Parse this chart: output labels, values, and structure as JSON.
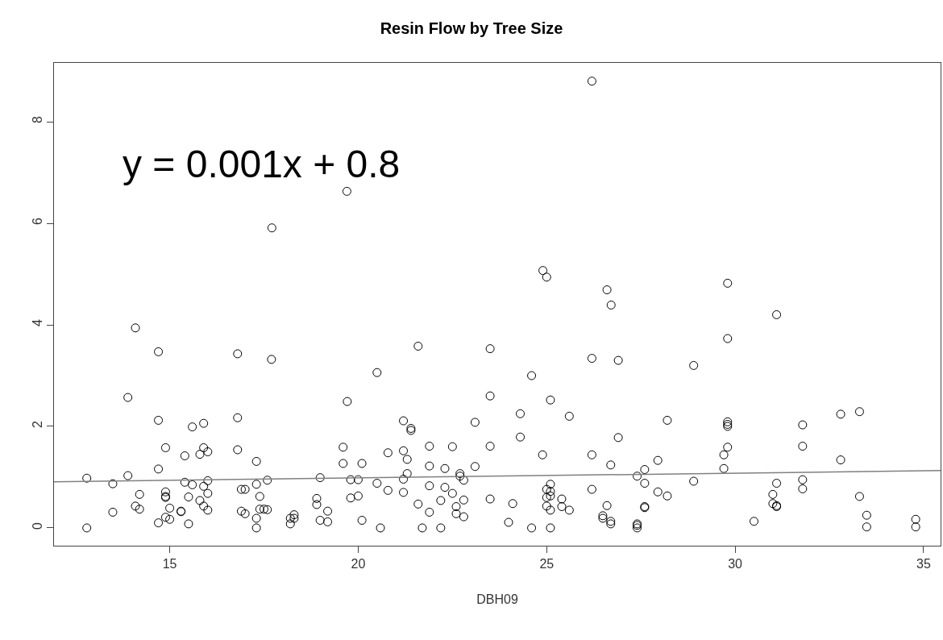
{
  "chart_data": {
    "type": "scatter",
    "title": "Resin Flow by Tree Size",
    "xlabel": "DBH09",
    "annotations": [
      "y = 0.001x + 0.8"
    ],
    "xlim": [
      11.93,
      35.45
    ],
    "xticks": [
      15,
      20,
      25,
      30,
      35
    ],
    "ylim": [
      -0.35,
      9.16
    ],
    "yticks": [
      0,
      2,
      4,
      6,
      8
    ],
    "series": [
      {
        "marker": "circle",
        "color": "#000000",
        "x": [
          14.09,
          14.7,
          16.8,
          17.7,
          13.89,
          14.7,
          15.6,
          15.9,
          16.8,
          19.71,
          14.89,
          15.4,
          15.8,
          15.9,
          16.01,
          16.8,
          17.3,
          19.6,
          19.6,
          20.1,
          14.7,
          12.8,
          13.89,
          13.49,
          15.4,
          15.6,
          15.9,
          16.01,
          16.01,
          17.3,
          17.59,
          18.99,
          19.8,
          20.0,
          14.2,
          14.89,
          14.89,
          14.89,
          15.5,
          15.8,
          16.9,
          17.0,
          17.39,
          18.9,
          18.9,
          19.8,
          20.0,
          13.49,
          14.09,
          14.2,
          15.0,
          15.3,
          15.3,
          15.9,
          16.01,
          16.9,
          17.0,
          17.39,
          17.5,
          17.59,
          17.3,
          18.2,
          18.2,
          18.3,
          18.3,
          19.19,
          18.99,
          19.19,
          20.1,
          12.8,
          14.7,
          14.89,
          15.0,
          15.5,
          17.3,
          20.5,
          21.59,
          23.5,
          24.6,
          26.2,
          26.9,
          23.5,
          25.1,
          21.2,
          21.4,
          21.4,
          24.3,
          25.6,
          23.1,
          24.3,
          26.9,
          20.79,
          21.2,
          21.3,
          21.89,
          22.5,
          23.5,
          24.89,
          26.2,
          21.3,
          21.89,
          22.3,
          23.1,
          26.7,
          21.2,
          22.7,
          22.7,
          22.8,
          20.5,
          20.79,
          21.2,
          21.89,
          22.3,
          22.5,
          21.59,
          22.19,
          22.8,
          22.6,
          21.89,
          22.6,
          22.8,
          23.5,
          24.1,
          20.59,
          21.7,
          22.19,
          23.99,
          24.6,
          25.1,
          25.1,
          25.0,
          25.1,
          25.0,
          25.1,
          25.0,
          25.1,
          25.4,
          25.4,
          25.6,
          26.2,
          26.6,
          26.49,
          26.49,
          26.7,
          26.7,
          27.4,
          27.6,
          27.6,
          27.6,
          27.6,
          27.4,
          27.4,
          27.4,
          27.95,
          27.95,
          26.2,
          24.9,
          25.0,
          26.6,
          26.71,
          29.8,
          31.1,
          19.7,
          17.71,
          29.8,
          28.9,
          28.2,
          29.8,
          29.8,
          29.8,
          29.8,
          29.7,
          29.7,
          28.9,
          28.2,
          31.79,
          31.79,
          31.79,
          31.79,
          32.8,
          33.3,
          32.8,
          33.3,
          33.49,
          33.49,
          34.79,
          34.79,
          31.1,
          31.0,
          31.0,
          31.1,
          31.1,
          30.5
        ],
        "values": [
          3.94,
          3.47,
          3.43,
          3.32,
          2.57,
          2.12,
          1.99,
          2.06,
          2.17,
          2.49,
          1.58,
          1.42,
          1.45,
          1.58,
          1.5,
          1.54,
          1.31,
          1.59,
          1.27,
          1.27,
          1.16,
          0.98,
          1.03,
          0.87,
          0.9,
          0.85,
          0.82,
          0.93,
          0.68,
          0.86,
          0.94,
          0.99,
          0.95,
          0.95,
          0.66,
          0.71,
          0.6,
          0.62,
          0.61,
          0.54,
          0.76,
          0.76,
          0.62,
          0.58,
          0.46,
          0.59,
          0.63,
          0.31,
          0.43,
          0.37,
          0.39,
          0.32,
          0.33,
          0.43,
          0.35,
          0.33,
          0.28,
          0.37,
          0.37,
          0.36,
          0.19,
          0.19,
          0.08,
          0.26,
          0.19,
          0.33,
          0.15,
          0.12,
          0.15,
          0.0,
          0.1,
          0.21,
          0.17,
          0.08,
          0.0,
          3.06,
          3.58,
          3.53,
          3.0,
          3.34,
          3.3,
          2.6,
          2.52,
          2.11,
          1.96,
          1.92,
          2.25,
          2.2,
          2.08,
          1.79,
          1.78,
          1.48,
          1.52,
          1.35,
          1.61,
          1.6,
          1.61,
          1.44,
          1.44,
          1.07,
          1.22,
          1.17,
          1.21,
          1.24,
          0.96,
          1.07,
          1.02,
          0.94,
          0.88,
          0.74,
          0.7,
          0.83,
          0.8,
          0.68,
          0.47,
          0.54,
          0.55,
          0.42,
          0.31,
          0.28,
          0.22,
          0.57,
          0.48,
          0.0,
          0.0,
          0.0,
          0.11,
          0.0,
          0.0,
          0.86,
          0.76,
          0.72,
          0.6,
          0.63,
          0.43,
          0.35,
          0.57,
          0.42,
          0.35,
          0.76,
          0.44,
          0.24,
          0.19,
          0.13,
          0.08,
          1.02,
          1.15,
          0.88,
          0.42,
          0.4,
          0.08,
          0.05,
          0.0,
          1.33,
          0.71,
          8.8,
          5.07,
          4.94,
          4.69,
          4.39,
          4.82,
          4.2,
          6.63,
          5.91,
          3.73,
          3.2,
          2.12,
          2.09,
          2.04,
          2.0,
          1.59,
          1.44,
          1.17,
          0.92,
          0.63,
          2.03,
          1.61,
          0.95,
          0.77,
          2.24,
          2.29,
          1.34,
          0.62,
          0.25,
          0.02,
          0.17,
          0.02,
          0.88,
          0.66,
          0.48,
          0.44,
          0.42,
          0.13
        ]
      },
      {
        "type": "line",
        "color": "#808080",
        "x": [
          11.93,
          35.45
        ],
        "values": [
          0.91,
          1.13
        ]
      }
    ]
  }
}
